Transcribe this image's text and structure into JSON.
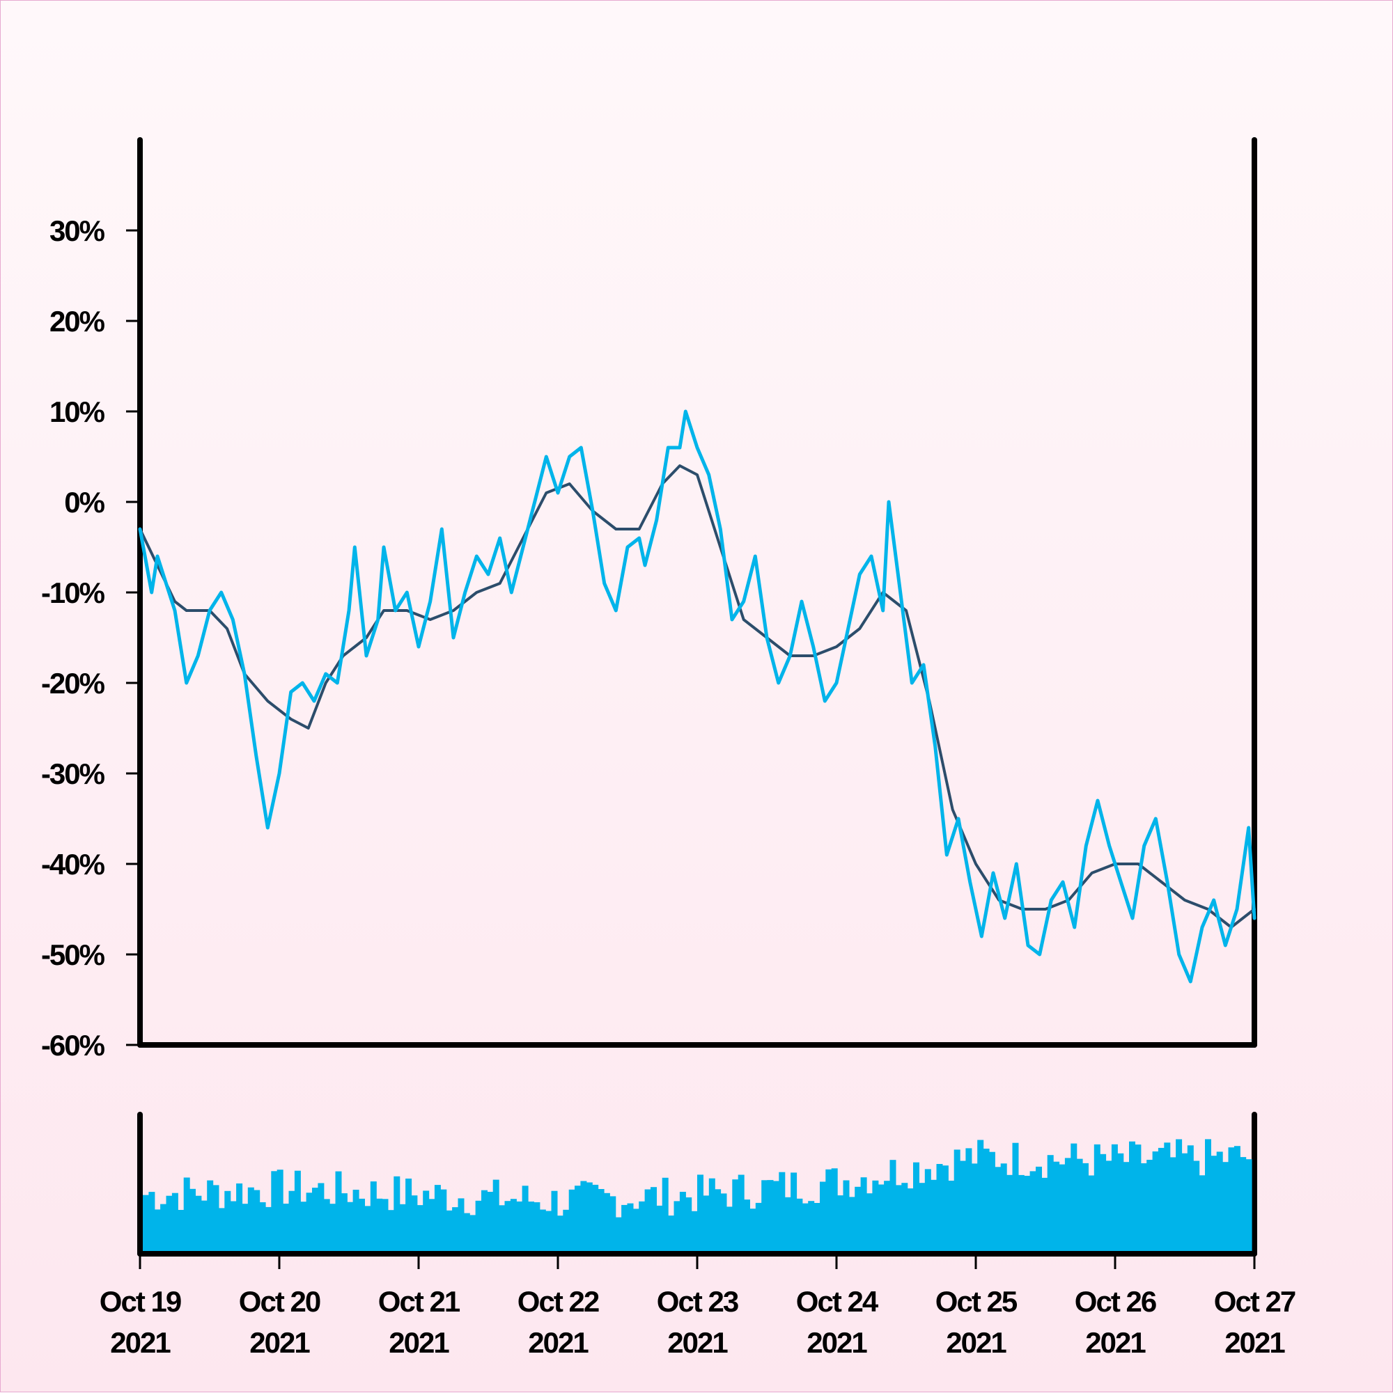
{
  "chart_data": {
    "type": "line",
    "y_axis": {
      "ticks": [
        30,
        20,
        10,
        0,
        -10,
        -20,
        -30,
        -40,
        -50,
        -60
      ],
      "tick_labels": [
        "30%",
        "20%",
        "10%",
        "0%",
        "-10%",
        "-20%",
        "-30%",
        "-40%",
        "-50%",
        "-60%"
      ],
      "ylim": [
        -60,
        40
      ],
      "unit": "%"
    },
    "x_axis": {
      "xlim": [
        "2021-10-19",
        "2021-10-27"
      ],
      "ticks": [
        "2021-10-19",
        "2021-10-20",
        "2021-10-21",
        "2021-10-22",
        "2021-10-23",
        "2021-10-24",
        "2021-10-25",
        "2021-10-26",
        "2021-10-27"
      ],
      "tick_labels": [
        {
          "line1": "Oct 19",
          "line2": "2021"
        },
        {
          "line1": "Oct 20",
          "line2": "2021"
        },
        {
          "line1": "Oct 21",
          "line2": "2021"
        },
        {
          "line1": "Oct 22",
          "line2": "2021"
        },
        {
          "line1": "Oct 23",
          "line2": "2021"
        },
        {
          "line1": "Oct 24",
          "line2": "2021"
        },
        {
          "line1": "Oct 25",
          "line2": "2021"
        },
        {
          "line1": "Oct 26",
          "line2": "2021"
        },
        {
          "line1": "Oct 27",
          "line2": "2021"
        }
      ]
    },
    "series": [
      {
        "role": "price-change",
        "color": "#00b4ea",
        "points": [
          [
            "2021-10-19 00:00",
            -3
          ],
          [
            "2021-10-19 02:00",
            -10
          ],
          [
            "2021-10-19 03:00",
            -6
          ],
          [
            "2021-10-19 04:00",
            -8
          ],
          [
            "2021-10-19 06:00",
            -12
          ],
          [
            "2021-10-19 08:00",
            -20
          ],
          [
            "2021-10-19 10:00",
            -17
          ],
          [
            "2021-10-19 12:00",
            -12
          ],
          [
            "2021-10-19 14:00",
            -10
          ],
          [
            "2021-10-19 16:00",
            -13
          ],
          [
            "2021-10-19 18:00",
            -19
          ],
          [
            "2021-10-19 20:00",
            -28
          ],
          [
            "2021-10-19 22:00",
            -36
          ],
          [
            "2021-10-20 00:00",
            -30
          ],
          [
            "2021-10-20 02:00",
            -21
          ],
          [
            "2021-10-20 04:00",
            -20
          ],
          [
            "2021-10-20 06:00",
            -22
          ],
          [
            "2021-10-20 08:00",
            -19
          ],
          [
            "2021-10-20 10:00",
            -20
          ],
          [
            "2021-10-20 12:00",
            -12
          ],
          [
            "2021-10-20 13:00",
            -5
          ],
          [
            "2021-10-20 15:00",
            -17
          ],
          [
            "2021-10-20 17:00",
            -13
          ],
          [
            "2021-10-20 18:00",
            -5
          ],
          [
            "2021-10-20 20:00",
            -12
          ],
          [
            "2021-10-20 22:00",
            -10
          ],
          [
            "2021-10-21 00:00",
            -16
          ],
          [
            "2021-10-21 02:00",
            -11
          ],
          [
            "2021-10-21 04:00",
            -3
          ],
          [
            "2021-10-21 06:00",
            -15
          ],
          [
            "2021-10-21 08:00",
            -10
          ],
          [
            "2021-10-21 10:00",
            -6
          ],
          [
            "2021-10-21 12:00",
            -8
          ],
          [
            "2021-10-21 14:00",
            -4
          ],
          [
            "2021-10-21 16:00",
            -10
          ],
          [
            "2021-10-21 18:00",
            -5
          ],
          [
            "2021-10-21 20:00",
            0
          ],
          [
            "2021-10-21 22:00",
            5
          ],
          [
            "2021-10-22 00:00",
            1
          ],
          [
            "2021-10-22 02:00",
            5
          ],
          [
            "2021-10-22 04:00",
            6
          ],
          [
            "2021-10-22 06:00",
            -1
          ],
          [
            "2021-10-22 08:00",
            -9
          ],
          [
            "2021-10-22 10:00",
            -12
          ],
          [
            "2021-10-22 12:00",
            -5
          ],
          [
            "2021-10-22 14:00",
            -4
          ],
          [
            "2021-10-22 15:00",
            -7
          ],
          [
            "2021-10-22 17:00",
            -2
          ],
          [
            "2021-10-22 19:00",
            6
          ],
          [
            "2021-10-22 21:00",
            6
          ],
          [
            "2021-10-22 22:00",
            10
          ],
          [
            "2021-10-23 00:00",
            6
          ],
          [
            "2021-10-23 02:00",
            3
          ],
          [
            "2021-10-23 04:00",
            -3
          ],
          [
            "2021-10-23 06:00",
            -13
          ],
          [
            "2021-10-23 08:00",
            -11
          ],
          [
            "2021-10-23 10:00",
            -6
          ],
          [
            "2021-10-23 12:00",
            -15
          ],
          [
            "2021-10-23 14:00",
            -20
          ],
          [
            "2021-10-23 16:00",
            -17
          ],
          [
            "2021-10-23 18:00",
            -11
          ],
          [
            "2021-10-23 20:00",
            -16
          ],
          [
            "2021-10-23 22:00",
            -22
          ],
          [
            "2021-10-24 00:00",
            -20
          ],
          [
            "2021-10-24 02:00",
            -14
          ],
          [
            "2021-10-24 04:00",
            -8
          ],
          [
            "2021-10-24 06:00",
            -6
          ],
          [
            "2021-10-24 08:00",
            -12
          ],
          [
            "2021-10-24 09:00",
            0
          ],
          [
            "2021-10-24 11:00",
            -10
          ],
          [
            "2021-10-24 13:00",
            -20
          ],
          [
            "2021-10-24 15:00",
            -18
          ],
          [
            "2021-10-24 17:00",
            -27
          ],
          [
            "2021-10-24 19:00",
            -39
          ],
          [
            "2021-10-24 21:00",
            -35
          ],
          [
            "2021-10-24 23:00",
            -42
          ],
          [
            "2021-10-25 01:00",
            -48
          ],
          [
            "2021-10-25 03:00",
            -41
          ],
          [
            "2021-10-25 05:00",
            -46
          ],
          [
            "2021-10-25 07:00",
            -40
          ],
          [
            "2021-10-25 09:00",
            -49
          ],
          [
            "2021-10-25 11:00",
            -50
          ],
          [
            "2021-10-25 13:00",
            -44
          ],
          [
            "2021-10-25 15:00",
            -42
          ],
          [
            "2021-10-25 17:00",
            -47
          ],
          [
            "2021-10-25 19:00",
            -38
          ],
          [
            "2021-10-25 21:00",
            -33
          ],
          [
            "2021-10-25 23:00",
            -38
          ],
          [
            "2021-10-26 01:00",
            -42
          ],
          [
            "2021-10-26 03:00",
            -46
          ],
          [
            "2021-10-26 05:00",
            -38
          ],
          [
            "2021-10-26 07:00",
            -35
          ],
          [
            "2021-10-26 09:00",
            -42
          ],
          [
            "2021-10-26 11:00",
            -50
          ],
          [
            "2021-10-26 13:00",
            -53
          ],
          [
            "2021-10-26 15:00",
            -47
          ],
          [
            "2021-10-26 17:00",
            -44
          ],
          [
            "2021-10-26 19:00",
            -49
          ],
          [
            "2021-10-26 21:00",
            -45
          ],
          [
            "2021-10-26 23:00",
            -36
          ],
          [
            "2021-10-27 00:00",
            -46
          ]
        ]
      },
      {
        "role": "moving-average",
        "color": "#2c4d6b",
        "points": [
          [
            "2021-10-19 00:00",
            -3
          ],
          [
            "2021-10-19 03:00",
            -7
          ],
          [
            "2021-10-19 06:00",
            -11
          ],
          [
            "2021-10-19 08:00",
            -12
          ],
          [
            "2021-10-19 12:00",
            -12
          ],
          [
            "2021-10-19 15:00",
            -14
          ],
          [
            "2021-10-19 18:00",
            -19
          ],
          [
            "2021-10-19 22:00",
            -22
          ],
          [
            "2021-10-20 02:00",
            -24
          ],
          [
            "2021-10-20 05:00",
            -25
          ],
          [
            "2021-10-20 08:00",
            -20
          ],
          [
            "2021-10-20 11:00",
            -17
          ],
          [
            "2021-10-20 15:00",
            -15
          ],
          [
            "2021-10-20 18:00",
            -12
          ],
          [
            "2021-10-20 22:00",
            -12
          ],
          [
            "2021-10-21 02:00",
            -13
          ],
          [
            "2021-10-21 06:00",
            -12
          ],
          [
            "2021-10-21 10:00",
            -10
          ],
          [
            "2021-10-21 14:00",
            -9
          ],
          [
            "2021-10-21 18:00",
            -4
          ],
          [
            "2021-10-21 22:00",
            1
          ],
          [
            "2021-10-22 02:00",
            2
          ],
          [
            "2021-10-22 06:00",
            -1
          ],
          [
            "2021-10-22 10:00",
            -3
          ],
          [
            "2021-10-22 14:00",
            -3
          ],
          [
            "2021-10-22 18:00",
            2
          ],
          [
            "2021-10-22 21:00",
            4
          ],
          [
            "2021-10-23 00:00",
            3
          ],
          [
            "2021-10-23 04:00",
            -5
          ],
          [
            "2021-10-23 08:00",
            -13
          ],
          [
            "2021-10-23 12:00",
            -15
          ],
          [
            "2021-10-23 16:00",
            -17
          ],
          [
            "2021-10-23 20:00",
            -17
          ],
          [
            "2021-10-24 00:00",
            -16
          ],
          [
            "2021-10-24 04:00",
            -14
          ],
          [
            "2021-10-24 08:00",
            -10
          ],
          [
            "2021-10-24 12:00",
            -12
          ],
          [
            "2021-10-24 16:00",
            -22
          ],
          [
            "2021-10-24 20:00",
            -34
          ],
          [
            "2021-10-25 00:00",
            -40
          ],
          [
            "2021-10-25 04:00",
            -44
          ],
          [
            "2021-10-25 08:00",
            -45
          ],
          [
            "2021-10-25 12:00",
            -45
          ],
          [
            "2021-10-25 16:00",
            -44
          ],
          [
            "2021-10-25 20:00",
            -41
          ],
          [
            "2021-10-26 00:00",
            -40
          ],
          [
            "2021-10-26 04:00",
            -40
          ],
          [
            "2021-10-26 08:00",
            -42
          ],
          [
            "2021-10-26 12:00",
            -44
          ],
          [
            "2021-10-26 16:00",
            -45
          ],
          [
            "2021-10-26 20:00",
            -47
          ],
          [
            "2021-10-27 00:00",
            -45
          ]
        ]
      },
      {
        "role": "volume",
        "type": "bar",
        "color": "#00b4ea",
        "relative_level_by_day": [
          [
            "2021-10-19",
            0.45
          ],
          [
            "2021-10-20",
            0.5
          ],
          [
            "2021-10-21",
            0.45
          ],
          [
            "2021-10-22",
            0.4
          ],
          [
            "2021-10-23",
            0.45
          ],
          [
            "2021-10-24",
            0.55
          ],
          [
            "2021-10-25",
            0.75
          ],
          [
            "2021-10-26",
            0.72
          ],
          [
            "2021-10-27",
            0.75
          ]
        ]
      }
    ],
    "grid": false,
    "legend": "none",
    "title": "",
    "xlabel": "",
    "ylabel": ""
  }
}
